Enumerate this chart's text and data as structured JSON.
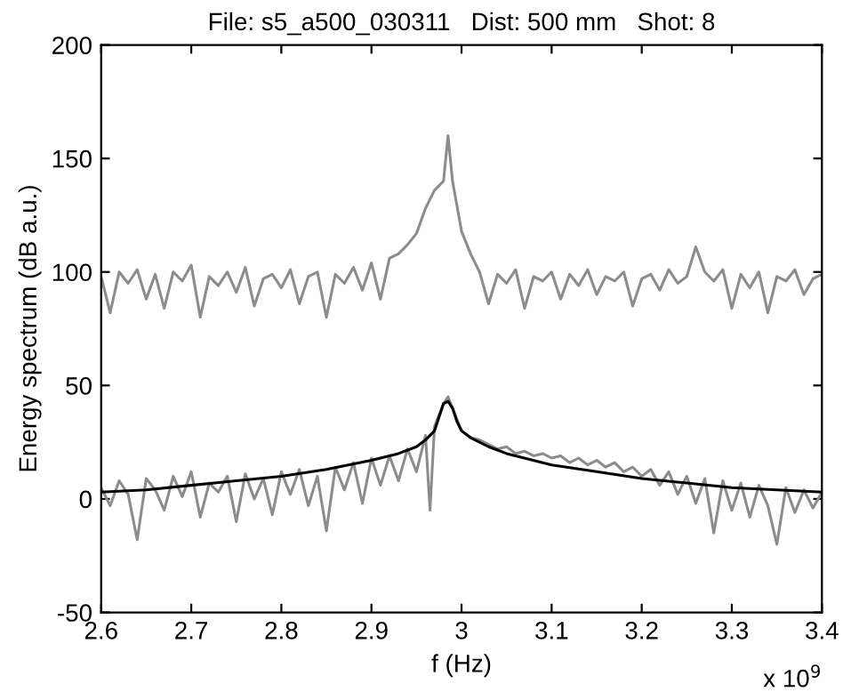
{
  "chart_data": {
    "type": "line",
    "title": "File: s5_a500_030311   Dist: 500 mm   Shot: 8",
    "xlabel": "f (Hz)",
    "ylabel": "Energy spectrum (dB a.u.)",
    "annotations": [
      "x 10$^{9}$"
    ],
    "xlim": [
      2.6,
      3.4
    ],
    "xticks": [
      2.6,
      2.7,
      2.8,
      2.9,
      3,
      3.1,
      3.2,
      3.3,
      3.4
    ],
    "ylim": [
      -50,
      200
    ],
    "yticks": [
      -50,
      0,
      50,
      100,
      150,
      200
    ],
    "grid": false,
    "legend": false,
    "line_style": "solid",
    "marker": "none",
    "series": [
      {
        "color": "#8c8c8c",
        "x": [
          2.6,
          2.61,
          2.62,
          2.63,
          2.64,
          2.65,
          2.66,
          2.67,
          2.68,
          2.69,
          2.7,
          2.71,
          2.72,
          2.73,
          2.74,
          2.75,
          2.76,
          2.77,
          2.78,
          2.79,
          2.8,
          2.81,
          2.82,
          2.83,
          2.84,
          2.85,
          2.86,
          2.87,
          2.88,
          2.89,
          2.9,
          2.91,
          2.92,
          2.93,
          2.94,
          2.95,
          2.96,
          2.97,
          2.98,
          2.985,
          2.99,
          3.0,
          3.01,
          3.02,
          3.03,
          3.04,
          3.05,
          3.06,
          3.07,
          3.08,
          3.09,
          3.1,
          3.11,
          3.12,
          3.13,
          3.14,
          3.15,
          3.16,
          3.17,
          3.18,
          3.19,
          3.2,
          3.21,
          3.22,
          3.23,
          3.24,
          3.25,
          3.26,
          3.27,
          3.28,
          3.29,
          3.3,
          3.31,
          3.32,
          3.33,
          3.34,
          3.35,
          3.36,
          3.37,
          3.38,
          3.39,
          3.4
        ],
        "values": [
          98,
          82,
          100,
          95,
          101,
          88,
          99,
          84,
          100,
          96,
          103,
          80,
          98,
          94,
          100,
          91,
          102,
          85,
          97,
          99,
          93,
          101,
          86,
          98,
          100,
          80,
          99,
          95,
          102,
          92,
          104,
          88,
          106,
          108,
          112,
          117,
          128,
          136,
          140,
          160,
          140,
          118,
          108,
          100,
          86,
          99,
          95,
          101,
          84,
          98,
          96,
          100,
          88,
          99,
          94,
          101,
          90,
          98,
          96,
          100,
          85,
          97,
          99,
          92,
          101,
          95,
          98,
          111,
          100,
          96,
          101,
          84,
          99,
          93,
          100,
          82,
          98,
          96,
          101,
          90,
          97,
          99
        ]
      },
      {
        "color": "#8c8c8c",
        "x": [
          2.6,
          2.61,
          2.62,
          2.63,
          2.64,
          2.65,
          2.66,
          2.67,
          2.68,
          2.69,
          2.7,
          2.71,
          2.72,
          2.73,
          2.74,
          2.75,
          2.76,
          2.77,
          2.78,
          2.79,
          2.8,
          2.81,
          2.82,
          2.83,
          2.84,
          2.85,
          2.86,
          2.87,
          2.88,
          2.89,
          2.9,
          2.91,
          2.92,
          2.93,
          2.94,
          2.95,
          2.96,
          2.965,
          2.97,
          2.98,
          2.985,
          2.99,
          3.0,
          3.01,
          3.02,
          3.03,
          3.04,
          3.05,
          3.06,
          3.07,
          3.08,
          3.09,
          3.1,
          3.11,
          3.12,
          3.13,
          3.14,
          3.15,
          3.16,
          3.17,
          3.18,
          3.19,
          3.2,
          3.21,
          3.22,
          3.23,
          3.24,
          3.25,
          3.26,
          3.27,
          3.28,
          3.29,
          3.3,
          3.31,
          3.32,
          3.33,
          3.34,
          3.35,
          3.36,
          3.37,
          3.38,
          3.39,
          3.4
        ],
        "values": [
          5,
          -3,
          8,
          2,
          -18,
          9,
          4,
          -5,
          10,
          1,
          12,
          -8,
          7,
          3,
          10,
          -10,
          11,
          0,
          9,
          -7,
          12,
          2,
          13,
          -3,
          10,
          -14,
          14,
          4,
          16,
          -2,
          18,
          6,
          19,
          8,
          22,
          12,
          28,
          -5,
          32,
          42,
          45,
          40,
          30,
          27,
          26,
          24,
          22,
          23,
          20,
          21,
          19,
          20,
          18,
          19,
          16,
          18,
          15,
          17,
          14,
          16,
          12,
          14,
          10,
          13,
          6,
          12,
          2,
          10,
          -2,
          9,
          -15,
          8,
          -5,
          7,
          -8,
          6,
          -3,
          -20,
          5,
          -6,
          4,
          -4,
          3
        ]
      },
      {
        "color": "#000000",
        "x": [
          2.6,
          2.65,
          2.7,
          2.75,
          2.8,
          2.85,
          2.9,
          2.93,
          2.95,
          2.96,
          2.97,
          2.975,
          2.98,
          2.985,
          2.99,
          2.995,
          3.0,
          3.01,
          3.03,
          3.05,
          3.1,
          3.15,
          3.2,
          3.25,
          3.3,
          3.35,
          3.4
        ],
        "values": [
          3,
          4,
          6,
          8,
          10,
          13,
          17,
          20,
          23,
          26,
          30,
          36,
          42,
          43,
          40,
          34,
          30,
          27,
          23,
          20,
          15,
          12,
          9,
          7,
          5,
          4,
          3
        ]
      }
    ]
  }
}
